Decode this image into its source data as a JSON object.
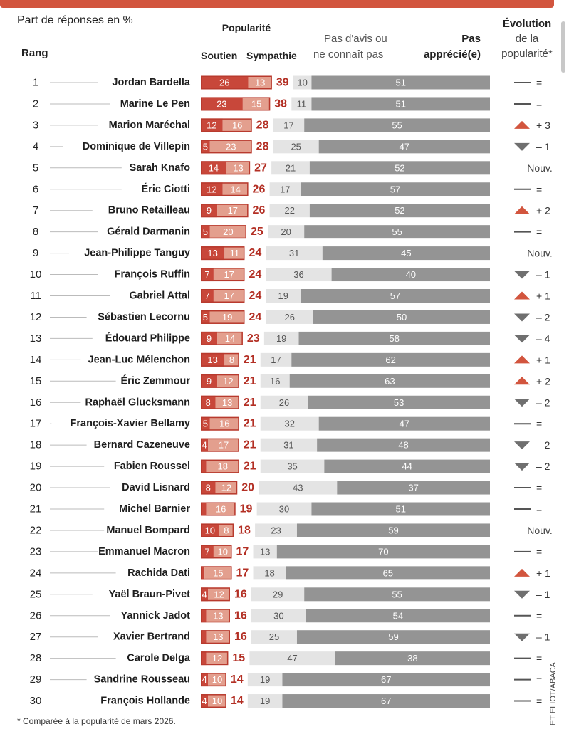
{
  "header": {
    "subtitle": "Part de réponses en %",
    "rank": "Rang",
    "popularity": "Popularité",
    "support": "Soutien",
    "sympathy": "Sympathie",
    "no_opinion_l1": "Pas d'avis ou",
    "no_opinion_l2": "ne connaît pas",
    "disliked_l1": "Pas",
    "disliked_l2": "apprécié(e)",
    "evolution_l1": "Évolution",
    "evolution_l2": "de la",
    "evolution_l3": "popularité*"
  },
  "footnote": "* Comparée à la popularité de mars 2026.",
  "credit": "ET ELIOT/ABACA",
  "colors": {
    "support": "#c8473a",
    "sympathy": "#e39f8e",
    "border": "#b83a2e",
    "total": "#b32f24",
    "no_opinion": "#e4e4e4",
    "disliked": "#949494",
    "arrow_up": "#d2553e",
    "arrow_down": "#6f6f6f"
  },
  "chart_data": {
    "type": "bar",
    "rows": [
      {
        "rank": "1",
        "name": "Jordan Bardella",
        "support": 26,
        "sympathy": 13,
        "total": 39,
        "no_opinion": 10,
        "disliked": 51,
        "trend": "flat",
        "change": "="
      },
      {
        "rank": "2",
        "name": "Marine Le Pen",
        "support": 23,
        "sympathy": 15,
        "total": 38,
        "no_opinion": 11,
        "disliked": 51,
        "trend": "flat",
        "change": "="
      },
      {
        "rank": "3",
        "name": "Marion Maréchal",
        "support": 12,
        "sympathy": 16,
        "total": 28,
        "no_opinion": 17,
        "disliked": 55,
        "trend": "up",
        "change": "+ 3"
      },
      {
        "rank": "4",
        "name": "Dominique de Villepin",
        "support": 5,
        "sympathy": 23,
        "total": 28,
        "no_opinion": 25,
        "disliked": 47,
        "trend": "down",
        "change": "– 1"
      },
      {
        "rank": "5",
        "name": "Sarah Knafo",
        "support": 14,
        "sympathy": 13,
        "total": 27,
        "no_opinion": 21,
        "disliked": 52,
        "trend": "new",
        "change": "Nouv."
      },
      {
        "rank": "6",
        "name": "Éric Ciotti",
        "support": 12,
        "sympathy": 14,
        "total": 26,
        "no_opinion": 17,
        "disliked": 57,
        "trend": "flat",
        "change": "="
      },
      {
        "rank": "7",
        "name": "Bruno Retailleau",
        "support": 9,
        "sympathy": 17,
        "total": 26,
        "no_opinion": 22,
        "disliked": 52,
        "trend": "up",
        "change": "+ 2"
      },
      {
        "rank": "8",
        "name": "Gérald Darmanin",
        "support": 5,
        "sympathy": 20,
        "total": 25,
        "no_opinion": 20,
        "disliked": 55,
        "trend": "flat",
        "change": "="
      },
      {
        "rank": "9",
        "name": "Jean-Philippe Tanguy",
        "support": 13,
        "sympathy": 11,
        "total": 24,
        "no_opinion": 31,
        "disliked": 45,
        "trend": "new",
        "change": "Nouv."
      },
      {
        "rank": "10",
        "name": "François Ruffin",
        "support": 7,
        "sympathy": 17,
        "total": 24,
        "no_opinion": 36,
        "disliked": 40,
        "trend": "down",
        "change": "– 1"
      },
      {
        "rank": "11",
        "name": "Gabriel Attal",
        "support": 7,
        "sympathy": 17,
        "total": 24,
        "no_opinion": 19,
        "disliked": 57,
        "trend": "up",
        "change": "+ 1"
      },
      {
        "rank": "12",
        "name": "Sébastien Lecornu",
        "support": 5,
        "sympathy": 19,
        "total": 24,
        "no_opinion": 26,
        "disliked": 50,
        "trend": "down",
        "change": "– 2"
      },
      {
        "rank": "13",
        "name": "Édouard Philippe",
        "support": 9,
        "sympathy": 14,
        "total": 23,
        "no_opinion": 19,
        "disliked": 58,
        "trend": "down",
        "change": "– 4"
      },
      {
        "rank": "14",
        "name": "Jean-Luc Mélenchon",
        "support": 13,
        "sympathy": 8,
        "total": 21,
        "no_opinion": 17,
        "disliked": 62,
        "trend": "up",
        "change": "+ 1"
      },
      {
        "rank": "15",
        "name": "Éric Zemmour",
        "support": 9,
        "sympathy": 12,
        "total": 21,
        "no_opinion": 16,
        "disliked": 63,
        "trend": "up",
        "change": "+ 2"
      },
      {
        "rank": "16",
        "name": "Raphaël Glucksmann",
        "support": 8,
        "sympathy": 13,
        "total": 21,
        "no_opinion": 26,
        "disliked": 53,
        "trend": "down",
        "change": "– 2"
      },
      {
        "rank": "17",
        "name": "François-Xavier Bellamy",
        "support": 5,
        "sympathy": 16,
        "total": 21,
        "no_opinion": 32,
        "disliked": 47,
        "trend": "flat",
        "change": "="
      },
      {
        "rank": "18",
        "name": "Bernard Cazeneuve",
        "support": 4,
        "sympathy": 17,
        "total": 21,
        "no_opinion": 31,
        "disliked": 48,
        "trend": "down",
        "change": "– 2"
      },
      {
        "rank": "19",
        "name": "Fabien Roussel",
        "support": 3,
        "sympathy": 18,
        "total": 21,
        "no_opinion": 35,
        "disliked": 44,
        "trend": "down",
        "change": "– 2"
      },
      {
        "rank": "20",
        "name": "David Lisnard",
        "support": 8,
        "sympathy": 12,
        "total": 20,
        "no_opinion": 43,
        "disliked": 37,
        "trend": "flat",
        "change": "="
      },
      {
        "rank": "21",
        "name": "Michel Barnier",
        "support": 3,
        "sympathy": 16,
        "total": 19,
        "no_opinion": 30,
        "disliked": 51,
        "trend": "flat",
        "change": "="
      },
      {
        "rank": "22",
        "name": "Manuel Bompard",
        "support": 10,
        "sympathy": 8,
        "total": 18,
        "no_opinion": 23,
        "disliked": 59,
        "trend": "new",
        "change": "Nouv."
      },
      {
        "rank": "23",
        "name": "Emmanuel Macron",
        "support": 7,
        "sympathy": 10,
        "total": 17,
        "no_opinion": 13,
        "disliked": 70,
        "trend": "flat",
        "change": "="
      },
      {
        "rank": "24",
        "name": "Rachida Dati",
        "support": 2,
        "sympathy": 15,
        "total": 17,
        "no_opinion": 18,
        "disliked": 65,
        "trend": "up",
        "change": "+ 1"
      },
      {
        "rank": "25",
        "name": "Yaël Braun-Pivet",
        "support": 4,
        "sympathy": 12,
        "total": 16,
        "no_opinion": 29,
        "disliked": 55,
        "trend": "down",
        "change": "– 1"
      },
      {
        "rank": "26",
        "name": "Yannick Jadot",
        "support": 3,
        "sympathy": 13,
        "total": 16,
        "no_opinion": 30,
        "disliked": 54,
        "trend": "flat",
        "change": "="
      },
      {
        "rank": "27",
        "name": "Xavier Bertrand",
        "support": 3,
        "sympathy": 13,
        "total": 16,
        "no_opinion": 25,
        "disliked": 59,
        "trend": "down",
        "change": "– 1"
      },
      {
        "rank": "28",
        "name": "Carole Delga",
        "support": 3,
        "sympathy": 12,
        "total": 15,
        "no_opinion": 47,
        "disliked": 38,
        "trend": "flat",
        "change": "="
      },
      {
        "rank": "29",
        "name": "Sandrine Rousseau",
        "support": 4,
        "sympathy": 10,
        "total": 14,
        "no_opinion": 19,
        "disliked": 67,
        "trend": "flat",
        "change": "="
      },
      {
        "rank": "30",
        "name": "François Hollande",
        "support": 4,
        "sympathy": 10,
        "total": 14,
        "no_opinion": 19,
        "disliked": 67,
        "trend": "flat",
        "change": "="
      }
    ]
  }
}
